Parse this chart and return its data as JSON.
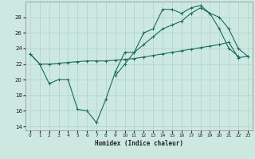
{
  "xlabel": "Humidex (Indice chaleur)",
  "background_color": "#cce8e0",
  "grid_color": "#aad4ca",
  "line_color": "#1a6b5e",
  "xlim": [
    -0.5,
    23.5
  ],
  "ylim": [
    13.5,
    30.0
  ],
  "yticks": [
    14,
    16,
    18,
    20,
    22,
    24,
    26,
    28
  ],
  "xticks": [
    0,
    1,
    2,
    3,
    4,
    5,
    6,
    7,
    8,
    9,
    10,
    11,
    12,
    13,
    14,
    15,
    16,
    17,
    18,
    19,
    20,
    21,
    22,
    23
  ],
  "series1_x": [
    0,
    1,
    2,
    3,
    4,
    5,
    6,
    7,
    8,
    9,
    10,
    11,
    12,
    13,
    14,
    15,
    16,
    17,
    18,
    19,
    20,
    21,
    22,
    23
  ],
  "series1_y": [
    23.3,
    22.0,
    19.5,
    20.0,
    20.0,
    16.2,
    16.0,
    14.5,
    17.5,
    21.0,
    23.5,
    23.5,
    26.0,
    26.5,
    29.0,
    29.0,
    28.5,
    29.2,
    29.5,
    28.5,
    26.5,
    24.0,
    23.0,
    null
  ],
  "series2_x": [
    0,
    1,
    2,
    3,
    4,
    5,
    6,
    7,
    8,
    9,
    10,
    11,
    12,
    13,
    14,
    15,
    16,
    17,
    18,
    19,
    20,
    21,
    22,
    23
  ],
  "series2_y": [
    23.3,
    22.0,
    22.0,
    22.1,
    22.2,
    22.3,
    22.4,
    22.4,
    22.4,
    22.5,
    22.6,
    22.7,
    22.9,
    23.1,
    23.3,
    23.5,
    23.7,
    23.9,
    24.1,
    24.3,
    24.5,
    24.8,
    22.8,
    23.0
  ],
  "series3_x": [
    9,
    10,
    11,
    12,
    13,
    14,
    15,
    16,
    17,
    18,
    19,
    20,
    21,
    22,
    23
  ],
  "series3_y": [
    20.5,
    22.0,
    23.5,
    24.5,
    25.5,
    26.5,
    27.0,
    27.5,
    28.5,
    29.2,
    28.5,
    28.0,
    26.5,
    24.0,
    23.0
  ]
}
